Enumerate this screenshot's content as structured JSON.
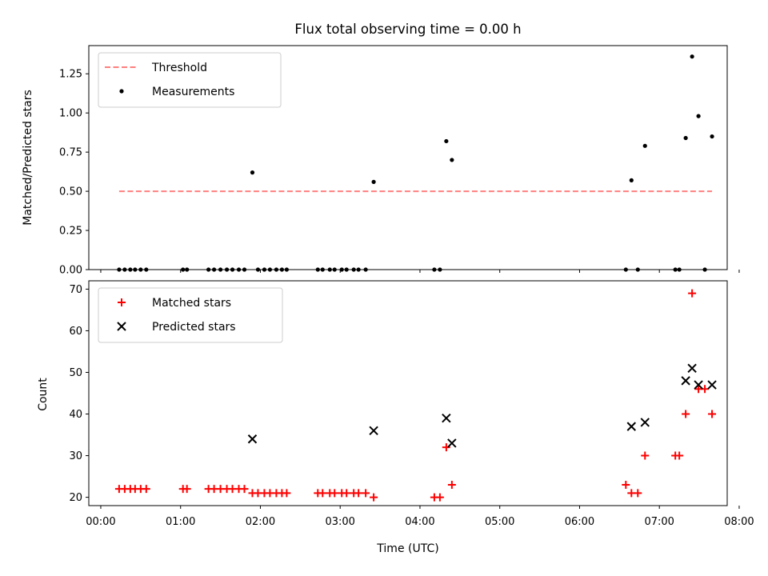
{
  "chart_data": [
    {
      "type": "scatter",
      "title": "Flux total observing time = 0.00 h",
      "xlabel": "",
      "ylabel": "Matched/Predicted stars",
      "xlim": [
        -0.15,
        7.85
      ],
      "ylim": [
        0,
        1.43
      ],
      "x_unit": "hours UTC",
      "yticks": [
        0.0,
        0.25,
        0.5,
        0.75,
        1.0,
        1.25
      ],
      "ytick_labels": [
        "0.00",
        "0.25",
        "0.50",
        "0.75",
        "1.00",
        "1.25"
      ],
      "legend": {
        "placement": "top-left",
        "entries": [
          "Threshold",
          "Measurements"
        ]
      },
      "threshold": {
        "name": "Threshold",
        "y": 0.5,
        "x": [
          0.23,
          7.66
        ],
        "color": "#ff7f7f"
      },
      "series": [
        {
          "name": "Measurements",
          "color": "#000000",
          "points": [
            [
              0.23,
              0
            ],
            [
              0.3,
              0
            ],
            [
              0.37,
              0
            ],
            [
              0.43,
              0
            ],
            [
              0.5,
              0
            ],
            [
              0.57,
              0
            ],
            [
              1.03,
              0
            ],
            [
              1.08,
              0
            ],
            [
              1.35,
              0
            ],
            [
              1.42,
              0
            ],
            [
              1.5,
              0
            ],
            [
              1.58,
              0
            ],
            [
              1.65,
              0
            ],
            [
              1.73,
              0
            ],
            [
              1.8,
              0
            ],
            [
              1.9,
              0.62
            ],
            [
              1.97,
              0
            ],
            [
              2.05,
              0
            ],
            [
              2.12,
              0
            ],
            [
              2.2,
              0
            ],
            [
              2.27,
              0
            ],
            [
              2.33,
              0
            ],
            [
              2.72,
              0
            ],
            [
              2.78,
              0
            ],
            [
              2.87,
              0
            ],
            [
              2.93,
              0
            ],
            [
              3.02,
              0
            ],
            [
              3.08,
              0
            ],
            [
              3.17,
              0
            ],
            [
              3.23,
              0
            ],
            [
              3.32,
              0
            ],
            [
              3.42,
              0.56
            ],
            [
              4.18,
              0
            ],
            [
              4.25,
              0
            ],
            [
              4.33,
              0.82
            ],
            [
              4.4,
              0.7
            ],
            [
              6.58,
              0
            ],
            [
              6.65,
              0.57
            ],
            [
              6.73,
              0
            ],
            [
              6.82,
              0.79
            ],
            [
              7.2,
              0
            ],
            [
              7.25,
              0
            ],
            [
              7.33,
              0.84
            ],
            [
              7.41,
              1.36
            ],
            [
              7.49,
              0.98
            ],
            [
              7.57,
              0
            ],
            [
              7.66,
              0.85
            ]
          ]
        }
      ]
    },
    {
      "type": "scatter",
      "title": "",
      "xlabel": "Time (UTC)",
      "ylabel": "Count",
      "xlim": [
        -0.15,
        7.85
      ],
      "ylim": [
        18,
        72
      ],
      "x_unit": "hours UTC",
      "xticks": [
        0,
        1,
        2,
        3,
        4,
        5,
        6,
        7,
        8
      ],
      "xtick_labels": [
        "00:00",
        "01:00",
        "02:00",
        "03:00",
        "04:00",
        "05:00",
        "06:00",
        "07:00",
        "08:00"
      ],
      "yticks": [
        20,
        30,
        40,
        50,
        60,
        70
      ],
      "ytick_labels": [
        "20",
        "30",
        "40",
        "50",
        "60",
        "70"
      ],
      "legend": {
        "placement": "top-left",
        "entries": [
          "Matched stars",
          "Predicted stars"
        ]
      },
      "series": [
        {
          "name": "Matched stars",
          "marker": "plus",
          "color": "#ff0000",
          "points": [
            [
              0.23,
              22
            ],
            [
              0.3,
              22
            ],
            [
              0.37,
              22
            ],
            [
              0.43,
              22
            ],
            [
              0.5,
              22
            ],
            [
              0.57,
              22
            ],
            [
              1.03,
              22
            ],
            [
              1.08,
              22
            ],
            [
              1.35,
              22
            ],
            [
              1.42,
              22
            ],
            [
              1.5,
              22
            ],
            [
              1.58,
              22
            ],
            [
              1.65,
              22
            ],
            [
              1.73,
              22
            ],
            [
              1.8,
              22
            ],
            [
              1.9,
              21
            ],
            [
              1.97,
              21
            ],
            [
              2.05,
              21
            ],
            [
              2.12,
              21
            ],
            [
              2.2,
              21
            ],
            [
              2.27,
              21
            ],
            [
              2.33,
              21
            ],
            [
              2.72,
              21
            ],
            [
              2.78,
              21
            ],
            [
              2.87,
              21
            ],
            [
              2.93,
              21
            ],
            [
              3.02,
              21
            ],
            [
              3.08,
              21
            ],
            [
              3.17,
              21
            ],
            [
              3.23,
              21
            ],
            [
              3.32,
              21
            ],
            [
              3.42,
              20
            ],
            [
              4.18,
              20
            ],
            [
              4.25,
              20
            ],
            [
              4.33,
              32
            ],
            [
              4.4,
              23
            ],
            [
              6.58,
              23
            ],
            [
              6.65,
              21
            ],
            [
              6.73,
              21
            ],
            [
              6.82,
              30
            ],
            [
              7.2,
              30
            ],
            [
              7.25,
              30
            ],
            [
              7.33,
              40
            ],
            [
              7.41,
              69
            ],
            [
              7.49,
              46
            ],
            [
              7.57,
              46
            ],
            [
              7.66,
              40
            ]
          ]
        },
        {
          "name": "Predicted stars",
          "marker": "x",
          "color": "#000000",
          "points": [
            [
              1.9,
              34
            ],
            [
              3.42,
              36
            ],
            [
              4.33,
              39
            ],
            [
              4.4,
              33
            ],
            [
              6.65,
              37
            ],
            [
              6.82,
              38
            ],
            [
              7.33,
              48
            ],
            [
              7.41,
              51
            ],
            [
              7.49,
              47
            ],
            [
              7.66,
              47
            ]
          ]
        }
      ]
    }
  ]
}
